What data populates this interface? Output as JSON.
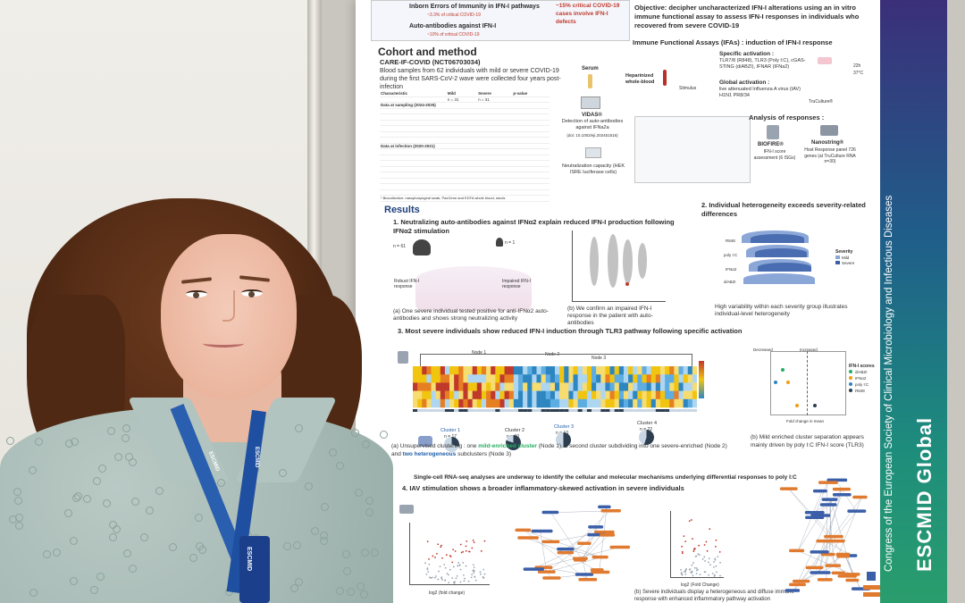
{
  "poster": {
    "top_ieiv": "Inborn Errors of Immunity in IFN-I pathways",
    "top_ieiv_pct": "~3.3% of critical COVID-19",
    "top_autoab": "Auto-antibodies against IFN-I",
    "top_autoab_pct": "~10% of critical COVID-19",
    "top_critical": "~15% critical COVID-19 cases involve IFN-I defects",
    "objective": "Objective: decipher uncharacterized IFN-I alterations using an in vitro immune functional assay to assess IFN-I responses in individuals who recovered from severe COVID-19",
    "cohort_title": "Cohort and method",
    "cohort_study": "CARE-IF-COVID (NCT06703034)",
    "cohort_desc": "Blood samples from 62 individuals with mild or severe COVID-19 during the first SARS-CoV-2 wave were collected four years post-infection",
    "cohort_col_char": "Characteristic",
    "cohort_col_mild": "Mild",
    "cohort_col_mild_n": "n = 31",
    "cohort_col_severe": "Severe",
    "cohort_col_severe_n": "n = 31",
    "cohort_col_p": "p-value",
    "cohort_sampling": "Data at sampling (2024-2025)",
    "cohort_infection": "Data at infection (2020-2021)",
    "cohort_footnote": "* Biocollection: nasopharyngeal swab, PaxGene and EDTA whole blood, stools",
    "ifa_title": "Immune Functional Assays (IFAs) : induction of IFN-I response",
    "ifa_blood": "Heparinized whole-blood",
    "ifa_stimulus": "Stimulus",
    "ifa_specific": "Specific activation :",
    "ifa_specific_desc": "TLR7/8 (R848), TLR3 (Poly I:C), cGAS-STING (diABZI), IFNAR (IFNa2)",
    "ifa_global": "Global activation :",
    "ifa_global_desc": "live attenuated Influenza A virus (IAV) H1N1 PR8/34",
    "ifa_truculture": "TruCulture®",
    "ifa_temp": "22h 37°C",
    "serum": "Serum",
    "vidas": "VIDAS®",
    "vidas_desc": "Detection of auto-antibodies against IFNa2a",
    "vidas_doi": "(doi: 10.1002/eji.202451516)",
    "neutralization": "Neutralization capacity (HEK ISRE luciferase cells)",
    "analysis_title": "Analysis of responses :",
    "biofire": "BIOFIRE®",
    "biofire_desc": "IFN-I score assessment (6 ISGs)",
    "nanostring": "Nanostring®",
    "nanostring_desc": "Host Response panel 726 genes (at TruCulture RNA n=30)",
    "results_title": "Results",
    "r1_title": "1. Neutralizing auto-antibodies against IFNα2 explain reduced IFN-I production following IFNα2 stimulation",
    "r1_robust": "Robust IFN-I response",
    "r1_impaired": "Impaired IFN-I response",
    "r1_n61": "n = 61",
    "r1_n1": "n = 1",
    "r1_a": "(a) One severe individual tested positive for anti-IFNα2 auto-antibodies and shows strong neutralizing activity",
    "r1_b": "(b) We confirm an impaired IFN-I response in the patient with auto-antibodies",
    "r2_title": "2. Individual heterogeneity exceeds severity-related differences",
    "r2_caption": "High variability within each severity group illustrates individual-level heterogeneity",
    "r2_legend_title": "Severity",
    "r2_legend_mild": "Mild",
    "r2_legend_severe": "Severe",
    "r2_rows": [
      "R848",
      "poly I:C",
      "IFNα2",
      "diABZI"
    ],
    "r3_title": "3. Most severe individuals show reduced IFN-I induction through TLR3 pathway following specific activation",
    "r3_node1": "Node 1",
    "r3_node2": "Node 2",
    "r3_node3": "Node 3",
    "r3_cluster1": "Cluster 1",
    "r3_cluster1_n": "n = 17",
    "r3_cluster2": "Cluster 2",
    "r3_cluster2_n": "n = 10",
    "r3_cluster3": "Cluster 3",
    "r3_cluster3_n": "n = 13",
    "r3_cluster4": "Cluster 4",
    "r3_cluster4_n": "n = 22",
    "r3_a_prefix": "(a) Unsupervised clustering : one",
    "r3_a_mild": "mild-enriched cluster",
    "r3_a_mid": "(Node 1), a second cluster subdividing into one severe-enriched (Node 2) and",
    "r3_a_hetero": "two heterogeneous",
    "r3_a_suffix": "subclusters (Node 3)",
    "r3_b": "(b) Mild enriched cluster separation appears mainly driven by poly I:C IFN-I score (TLR3)",
    "r3_xlabel": "Fold change in mean",
    "r3_scores_title": "IFN-I scores",
    "r3_scores": [
      "diABZI",
      "IFNα2",
      "poly I:C",
      "R848"
    ],
    "r3_decreased": "Decreased",
    "r3_increased": "Increased",
    "r3_scrna": "Single-cell RNA-seq analyses are underway to identify the cellular and molecular mechanisms underlying differential responses to poly I:C",
    "r4_title": "4. IAV stimulation shows a broader inflammatory-skewed activation in severe individuals",
    "r4_xlabel": "log2 (fold change)",
    "r4_xlabel_b": "log2 (Fold Change)",
    "r4_b": "(b) Severe individuals display a heterogeneous and diffuse immune response with enhanced inflammatory pathway activation",
    "banner_congress": "Congress of the European Society of Clinical Microbiology and Infectious Diseases",
    "banner_brand": "ESCMID Global",
    "lanyard_text": "ESCMID",
    "colors": {
      "banner_top": "#3b2f7a",
      "banner_bottom": "#2a9d6d",
      "heat_red": "#c0392b",
      "heat_yellow": "#f1c40f",
      "heat_blue": "#2e86c1",
      "ridge_blue": "#3a5fa8",
      "orange_node": "#e07a2f",
      "lanyard": "#2a5fb0",
      "shirt": "#a7bab5",
      "hair": "#5a2f17"
    }
  }
}
